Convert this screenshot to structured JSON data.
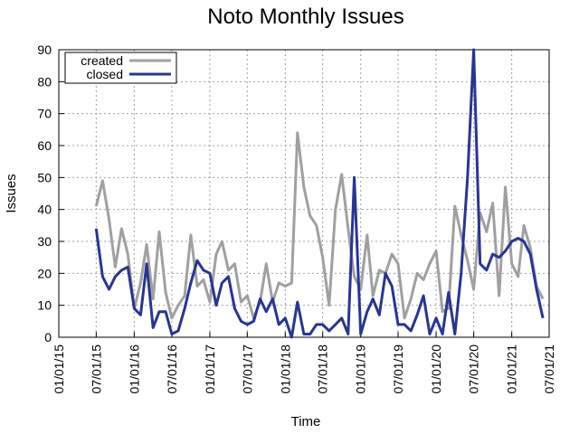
{
  "chart_data": {
    "type": "line",
    "title": "Noto Monthly Issues",
    "xlabel": "Time",
    "ylabel": "Issues",
    "x": [
      "2015-07-01",
      "2015-08-01",
      "2015-09-01",
      "2015-10-01",
      "2015-11-01",
      "2015-12-01",
      "2016-01-01",
      "2016-02-01",
      "2016-03-01",
      "2016-04-01",
      "2016-05-01",
      "2016-06-01",
      "2016-07-01",
      "2016-08-01",
      "2016-09-01",
      "2016-10-01",
      "2016-11-01",
      "2016-12-01",
      "2017-01-01",
      "2017-02-01",
      "2017-03-01",
      "2017-04-01",
      "2017-05-01",
      "2017-06-01",
      "2017-07-01",
      "2017-08-01",
      "2017-09-01",
      "2017-10-01",
      "2017-11-01",
      "2017-12-01",
      "2018-01-01",
      "2018-02-01",
      "2018-03-01",
      "2018-04-01",
      "2018-05-01",
      "2018-06-01",
      "2018-07-01",
      "2018-08-01",
      "2018-09-01",
      "2018-10-01",
      "2018-11-01",
      "2018-12-01",
      "2019-01-01",
      "2019-02-01",
      "2019-03-01",
      "2019-04-01",
      "2019-05-01",
      "2019-06-01",
      "2019-07-01",
      "2019-08-01",
      "2019-09-01",
      "2019-10-01",
      "2019-11-01",
      "2019-12-01",
      "2020-01-01",
      "2020-02-01",
      "2020-03-01",
      "2020-04-01",
      "2020-05-01",
      "2020-06-01",
      "2020-07-01",
      "2020-08-01",
      "2020-09-01",
      "2020-10-01",
      "2020-11-01",
      "2020-12-01",
      "2021-01-01",
      "2021-02-01",
      "2021-03-01",
      "2021-04-01",
      "2021-05-01",
      "2021-06-01"
    ],
    "series": [
      {
        "name": "created",
        "color": "#a0a0a0",
        "values": [
          41,
          49,
          37,
          22,
          34,
          26,
          9,
          17,
          29,
          12,
          33,
          14,
          6,
          10,
          13,
          32,
          16,
          18,
          11,
          26,
          30,
          21,
          23,
          11,
          13,
          6,
          11,
          23,
          11,
          17,
          16,
          17,
          64,
          47,
          38,
          35,
          25,
          10,
          40,
          51,
          34,
          19,
          15,
          32,
          13,
          21,
          20,
          26,
          23,
          6,
          12,
          20,
          18,
          23,
          27,
          8,
          9,
          41,
          32,
          24,
          15,
          39,
          33,
          42,
          13,
          47,
          23,
          19,
          35,
          28,
          16,
          12
        ]
      },
      {
        "name": "closed",
        "color": "#283593",
        "values": [
          34,
          19,
          15,
          19,
          21,
          22,
          9,
          7,
          23,
          3,
          8,
          8,
          1,
          2,
          9,
          17,
          24,
          21,
          20,
          10,
          17,
          19,
          9,
          5,
          4,
          5,
          12,
          8,
          12,
          4,
          6,
          0,
          11,
          1,
          1,
          4,
          4,
          2,
          4,
          6,
          1,
          50,
          1,
          8,
          12,
          7,
          20,
          16,
          4,
          4,
          2,
          7,
          13,
          1,
          6,
          1,
          14,
          1,
          20,
          50,
          90,
          23,
          21,
          26,
          25,
          27,
          30,
          31,
          30,
          26,
          15,
          6
        ]
      }
    ],
    "xlim": [
      "2015-01-01",
      "2021-07-01"
    ],
    "xticks": [
      {
        "value": "2015-01-01",
        "label": "01/01/15"
      },
      {
        "value": "2015-07-01",
        "label": "07/01/15"
      },
      {
        "value": "2016-01-01",
        "label": "01/01/16"
      },
      {
        "value": "2016-07-01",
        "label": "07/01/16"
      },
      {
        "value": "2017-01-01",
        "label": "01/01/17"
      },
      {
        "value": "2017-07-01",
        "label": "07/01/17"
      },
      {
        "value": "2018-01-01",
        "label": "01/01/18"
      },
      {
        "value": "2018-07-01",
        "label": "07/01/18"
      },
      {
        "value": "2019-01-01",
        "label": "01/01/19"
      },
      {
        "value": "2019-07-01",
        "label": "07/01/19"
      },
      {
        "value": "2020-01-01",
        "label": "01/01/20"
      },
      {
        "value": "2020-07-01",
        "label": "07/01/20"
      },
      {
        "value": "2021-01-01",
        "label": "01/01/21"
      },
      {
        "value": "2021-07-01",
        "label": "07/01/21"
      }
    ],
    "ylim": [
      0,
      90
    ],
    "yticks": [
      0,
      10,
      20,
      30,
      40,
      50,
      60,
      70,
      80,
      90
    ],
    "grid": true,
    "legend": "top-left"
  }
}
